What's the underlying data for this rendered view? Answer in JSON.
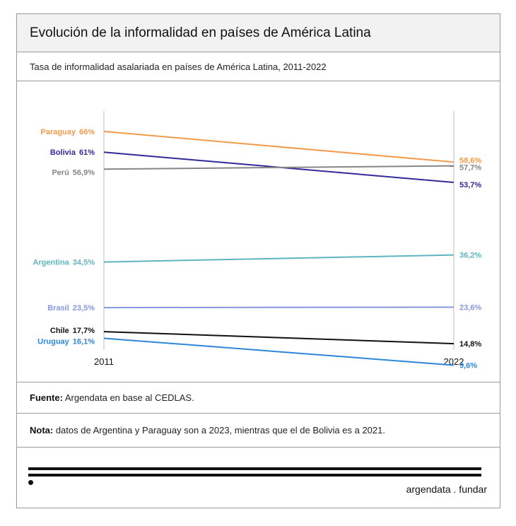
{
  "header": {
    "title": "Evolución de la informalidad en países de América Latina",
    "subtitle": "Tasa de informalidad asalariada en países de América Latina, 2011-2022"
  },
  "chart_data": {
    "type": "line",
    "chart_style": "slope",
    "x": [
      "2011",
      "2022"
    ],
    "ylim": [
      8,
      68
    ],
    "grid": false,
    "legend": "none (inline labels at line ends)",
    "series": [
      {
        "name": "Paraguay",
        "values": [
          66,
          58.6
        ],
        "start_label": "66%",
        "end_label": "58,6%",
        "color": "#F39A4C"
      },
      {
        "name": "Bolivia",
        "values": [
          61,
          53.7
        ],
        "start_label": "61%",
        "end_label": "53,7%",
        "color": "#32299A"
      },
      {
        "name": "Perú",
        "values": [
          56.9,
          57.7
        ],
        "start_label": "56,9%",
        "end_label": "57,7%",
        "color": "#868686"
      },
      {
        "name": "Argentina",
        "values": [
          34.5,
          36.2
        ],
        "start_label": "34,5%",
        "end_label": "36,2%",
        "color": "#5FB5BF"
      },
      {
        "name": "Brasil",
        "values": [
          23.5,
          23.6
        ],
        "start_label": "23,5%",
        "end_label": "23,6%",
        "color": "#8797DC"
      },
      {
        "name": "Chile",
        "values": [
          17.7,
          14.8
        ],
        "start_label": "17,7%",
        "end_label": "14,8%",
        "color": "#111111"
      },
      {
        "name": "Uruguay",
        "values": [
          16.1,
          9.6
        ],
        "start_label": "16,1%",
        "end_label": "9,6%",
        "color": "#2E86D9"
      }
    ]
  },
  "footer": {
    "source_label": "Fuente:",
    "source_text": " Argendata en base al CEDLAS.",
    "note_label": "Nota:",
    "note_text": " datos de Argentina y Paraguay son a 2023, mientras que el de Bolivia es a 2021.",
    "brand": "argendata . fundar"
  }
}
